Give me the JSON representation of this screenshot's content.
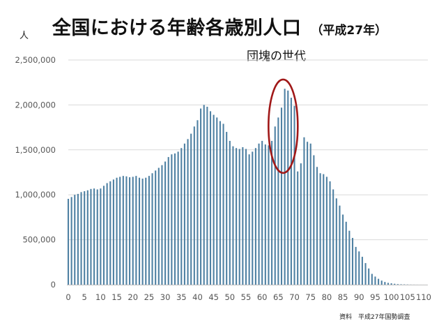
{
  "chart_data": {
    "type": "bar",
    "title": "全国における年齢各歳別人口",
    "subtitle": "（平成27年）",
    "ylabel": "人",
    "annotation": "団塊の世代",
    "source": "資料　平成27年国勢調査",
    "ylim": [
      0,
      2500000
    ],
    "yticks": [
      0,
      500000,
      1000000,
      1500000,
      2000000,
      2500000
    ],
    "ytick_labels": [
      "0",
      "500,000",
      "1,000,000",
      "1,500,000",
      "2,000,000",
      "2,500,000"
    ],
    "xticks": [
      0,
      5,
      10,
      15,
      20,
      25,
      30,
      35,
      40,
      45,
      50,
      55,
      60,
      65,
      70,
      75,
      80,
      85,
      90,
      95,
      100,
      105,
      110
    ],
    "xtick_labels": [
      "0",
      "5",
      "10",
      "15",
      "20",
      "25",
      "30",
      "35",
      "40",
      "45",
      "50",
      "55",
      "60",
      "65",
      "70",
      "75",
      "80",
      "85",
      "90",
      "95",
      "100",
      "105",
      "110"
    ],
    "grid": true,
    "bar_color": "#4f81a3",
    "annotation_color": "#a01818",
    "x": [
      0,
      1,
      2,
      3,
      4,
      5,
      6,
      7,
      8,
      9,
      10,
      11,
      12,
      13,
      14,
      15,
      16,
      17,
      18,
      19,
      20,
      21,
      22,
      23,
      24,
      25,
      26,
      27,
      28,
      29,
      30,
      31,
      32,
      33,
      34,
      35,
      36,
      37,
      38,
      39,
      40,
      41,
      42,
      43,
      44,
      45,
      46,
      47,
      48,
      49,
      50,
      51,
      52,
      53,
      54,
      55,
      56,
      57,
      58,
      59,
      60,
      61,
      62,
      63,
      64,
      65,
      66,
      67,
      68,
      69,
      70,
      71,
      72,
      73,
      74,
      75,
      76,
      77,
      78,
      79,
      80,
      81,
      82,
      83,
      84,
      85,
      86,
      87,
      88,
      89,
      90,
      91,
      92,
      93,
      94,
      95,
      96,
      97,
      98,
      99,
      100,
      101,
      102,
      103,
      104,
      105,
      106,
      107,
      108,
      109,
      110
    ],
    "values": [
      955000,
      975000,
      1000000,
      1010000,
      1030000,
      1040000,
      1050000,
      1065000,
      1070000,
      1060000,
      1070000,
      1100000,
      1130000,
      1150000,
      1170000,
      1190000,
      1200000,
      1210000,
      1205000,
      1195000,
      1200000,
      1210000,
      1190000,
      1180000,
      1190000,
      1210000,
      1240000,
      1270000,
      1300000,
      1330000,
      1370000,
      1420000,
      1450000,
      1460000,
      1480000,
      1520000,
      1570000,
      1620000,
      1680000,
      1760000,
      1830000,
      1960000,
      2000000,
      1980000,
      1930000,
      1890000,
      1860000,
      1820000,
      1790000,
      1700000,
      1600000,
      1540000,
      1520000,
      1510000,
      1530000,
      1510000,
      1450000,
      1480000,
      1520000,
      1570000,
      1600000,
      1560000,
      1550000,
      1600000,
      1760000,
      1860000,
      1970000,
      2180000,
      2160000,
      2080000,
      1990000,
      1260000,
      1350000,
      1640000,
      1590000,
      1570000,
      1440000,
      1310000,
      1240000,
      1230000,
      1200000,
      1150000,
      1060000,
      960000,
      880000,
      780000,
      700000,
      600000,
      520000,
      420000,
      370000,
      310000,
      240000,
      180000,
      120000,
      90000,
      65000,
      45000,
      30000,
      20000,
      15000,
      10000,
      6000,
      4000,
      3000,
      2000,
      1000,
      600,
      300,
      150,
      100
    ]
  }
}
